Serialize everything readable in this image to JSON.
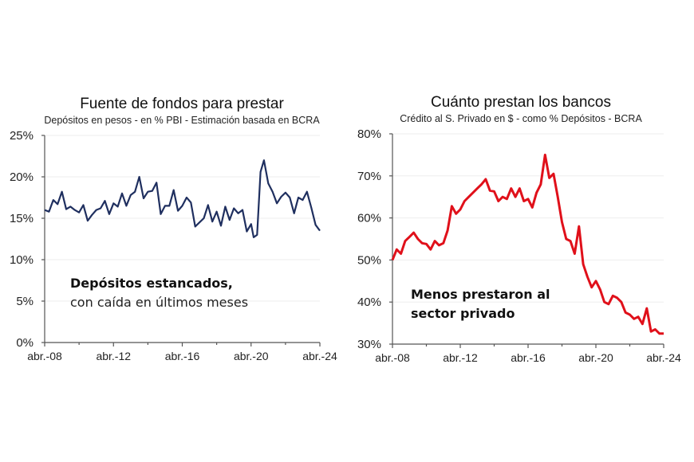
{
  "chart_data": [
    {
      "type": "line",
      "title": "Fuente de fondos para prestar",
      "subtitle": "Depósitos en pesos -  en % PBI - Estimación basada en BCRA",
      "xlabel": "",
      "ylabel": "",
      "ylim": [
        0,
        25
      ],
      "yticks": [
        "0%",
        "5%",
        "10%",
        "15%",
        "20%",
        "25%"
      ],
      "ytick_values": [
        0,
        5,
        10,
        15,
        20,
        25
      ],
      "xticks": [
        "abr.-08",
        "abr.-12",
        "abr.-16",
        "abr.-20",
        "abr.-24"
      ],
      "xtick_values": [
        2008.25,
        2012.25,
        2016.25,
        2020.25,
        2024.25
      ],
      "xlim": [
        2008.25,
        2024.25
      ],
      "grid": true,
      "color": "#1f2f5f",
      "annotation": {
        "bold": "Depósitos estancados,",
        "normal": "con caída en últimos meses"
      },
      "series": [
        {
          "name": "Depósitos en pesos % PBI",
          "x": [
            2008.25,
            2008.5,
            2008.75,
            2009.0,
            2009.25,
            2009.5,
            2009.75,
            2010.0,
            2010.25,
            2010.5,
            2010.75,
            2011.0,
            2011.25,
            2011.5,
            2011.75,
            2012.0,
            2012.25,
            2012.5,
            2012.75,
            2013.0,
            2013.25,
            2013.5,
            2013.75,
            2014.0,
            2014.25,
            2014.5,
            2014.75,
            2015.0,
            2015.25,
            2015.5,
            2015.75,
            2016.0,
            2016.25,
            2016.5,
            2016.75,
            2017.0,
            2017.25,
            2017.5,
            2017.75,
            2018.0,
            2018.25,
            2018.5,
            2018.75,
            2019.0,
            2019.25,
            2019.5,
            2019.75,
            2020.0,
            2020.25,
            2020.4,
            2020.6,
            2020.8,
            2021.0,
            2021.25,
            2021.5,
            2021.75,
            2022.0,
            2022.25,
            2022.5,
            2022.75,
            2023.0,
            2023.25,
            2023.5,
            2023.75,
            2024.0,
            2024.25
          ],
          "y": [
            16.0,
            15.8,
            17.2,
            16.7,
            18.2,
            16.1,
            16.4,
            16.0,
            15.7,
            16.6,
            14.7,
            15.4,
            16.0,
            16.2,
            17.1,
            15.5,
            16.8,
            16.4,
            18.0,
            16.5,
            17.8,
            18.2,
            20.0,
            17.4,
            18.2,
            18.3,
            19.3,
            15.5,
            16.5,
            16.5,
            18.4,
            15.9,
            16.5,
            17.5,
            16.9,
            14.0,
            14.5,
            15.0,
            16.6,
            14.6,
            15.8,
            14.1,
            16.4,
            14.8,
            16.2,
            15.6,
            16.0,
            13.4,
            14.3,
            12.7,
            13.0,
            20.6,
            22.0,
            19.2,
            18.2,
            16.8,
            17.6,
            18.1,
            17.5,
            15.6,
            17.5,
            17.2,
            18.2,
            16.3,
            14.2,
            13.5
          ]
        }
      ]
    },
    {
      "type": "line",
      "title": "Cuánto prestan los bancos",
      "subtitle": "Crédito al S. Privado en $ - como % Depósitos - BCRA",
      "xlabel": "",
      "ylabel": "",
      "ylim": [
        30,
        80
      ],
      "yticks": [
        "30%",
        "40%",
        "50%",
        "60%",
        "70%",
        "80%"
      ],
      "ytick_values": [
        30,
        40,
        50,
        60,
        70,
        80
      ],
      "xticks": [
        "abr.-08",
        "abr.-12",
        "abr.-16",
        "abr.-20",
        "abr.-24"
      ],
      "xtick_values": [
        2008.25,
        2012.25,
        2016.25,
        2020.25,
        2024.25
      ],
      "xlim": [
        2008.25,
        2024.25
      ],
      "grid": true,
      "color": "#e0101a",
      "annotation": {
        "bold": "Menos prestaron al",
        "bold2": "sector privado"
      },
      "series": [
        {
          "name": "Crédito al S. Privado % Depósitos",
          "x": [
            2008.25,
            2008.5,
            2008.75,
            2009.0,
            2009.25,
            2009.5,
            2009.75,
            2010.0,
            2010.25,
            2010.5,
            2010.75,
            2011.0,
            2011.25,
            2011.5,
            2011.75,
            2012.0,
            2012.25,
            2012.5,
            2012.75,
            2013.0,
            2013.25,
            2013.5,
            2013.75,
            2014.0,
            2014.25,
            2014.5,
            2014.75,
            2015.0,
            2015.25,
            2015.5,
            2015.75,
            2016.0,
            2016.25,
            2016.5,
            2016.75,
            2017.0,
            2017.25,
            2017.5,
            2017.75,
            2018.0,
            2018.25,
            2018.5,
            2018.75,
            2019.0,
            2019.25,
            2019.5,
            2019.75,
            2020.0,
            2020.25,
            2020.5,
            2020.75,
            2021.0,
            2021.25,
            2021.5,
            2021.75,
            2022.0,
            2022.25,
            2022.5,
            2022.75,
            2023.0,
            2023.25,
            2023.5,
            2023.75,
            2024.0,
            2024.25
          ],
          "y": [
            50.0,
            52.5,
            51.5,
            54.5,
            55.5,
            56.5,
            55.0,
            54.0,
            53.8,
            52.5,
            54.5,
            53.5,
            54.0,
            57.0,
            62.8,
            61.0,
            62.0,
            64.0,
            65.0,
            66.0,
            67.0,
            68.0,
            69.2,
            66.5,
            66.3,
            64.0,
            65.0,
            64.5,
            67.0,
            65.0,
            67.0,
            64.0,
            64.5,
            62.5,
            66.0,
            68.0,
            75.0,
            69.5,
            70.5,
            65.0,
            59.0,
            55.0,
            54.5,
            51.5,
            58.0,
            49.0,
            46.0,
            43.5,
            45.0,
            43.0,
            40.0,
            39.5,
            41.5,
            41.0,
            40.0,
            37.5,
            37.0,
            36.0,
            36.5,
            34.8,
            38.5,
            33.0,
            33.5,
            32.5,
            32.5
          ]
        }
      ]
    }
  ]
}
